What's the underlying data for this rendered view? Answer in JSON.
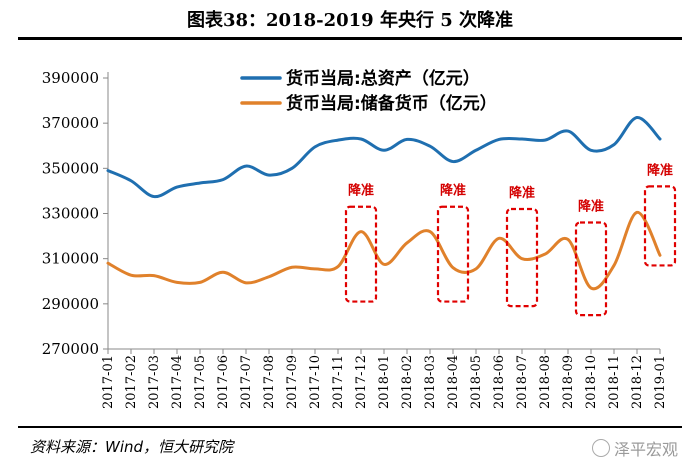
{
  "title": "图表38：2018-2019 年央行 5 次降准",
  "source": "资料来源：Wind，恒大研究院",
  "watermark": "泽平宏观",
  "chart_data": {
    "type": "line",
    "categories": [
      "2017-01",
      "2017-02",
      "2017-03",
      "2017-04",
      "2017-05",
      "2017-06",
      "2017-07",
      "2017-08",
      "2017-09",
      "2017-10",
      "2017-11",
      "2017-12",
      "2018-01",
      "2018-02",
      "2018-03",
      "2018-04",
      "2018-05",
      "2018-06",
      "2018-07",
      "2018-08",
      "2018-09",
      "2018-10",
      "2018-11",
      "2018-12",
      "2019-01"
    ],
    "series": [
      {
        "name": "货币当局:总资产（亿元）",
        "color": "#1f6fb0",
        "values": [
          349000,
          344500,
          337500,
          341700,
          343500,
          345000,
          351000,
          347000,
          350000,
          359500,
          362500,
          363000,
          358000,
          362800,
          359800,
          353000,
          358000,
          362800,
          363000,
          362500,
          366500,
          358000,
          360500,
          372500,
          363000
        ]
      },
      {
        "name": "货币当局:储备货币（亿元）",
        "color": "#e0812b",
        "values": [
          308000,
          302700,
          302500,
          299500,
          299500,
          304000,
          299300,
          302000,
          306200,
          305500,
          306500,
          322000,
          307500,
          317000,
          322000,
          306000,
          305500,
          319000,
          310000,
          312000,
          318500,
          297000,
          307000,
          330500,
          311500
        ]
      }
    ],
    "ylim": [
      270000,
      390000
    ],
    "yticks": [
      "270000",
      "290000",
      "310000",
      "330000",
      "350000",
      "370000",
      "390000"
    ],
    "annotations": [
      {
        "label": "降准",
        "category": "2017-12",
        "y_low": 291000,
        "y_high": 333000
      },
      {
        "label": "降准",
        "category": "2018-04",
        "y_low": 291000,
        "y_high": 333000
      },
      {
        "label": "降准",
        "category": "2018-07",
        "y_low": 289000,
        "y_high": 332000
      },
      {
        "label": "降准",
        "category": "2018-10",
        "y_low": 285000,
        "y_high": 326000
      },
      {
        "label": "降准",
        "category": "2019-01",
        "y_low": 307000,
        "y_high": 342000
      }
    ],
    "title": "",
    "xlabel": "",
    "ylabel": ""
  }
}
